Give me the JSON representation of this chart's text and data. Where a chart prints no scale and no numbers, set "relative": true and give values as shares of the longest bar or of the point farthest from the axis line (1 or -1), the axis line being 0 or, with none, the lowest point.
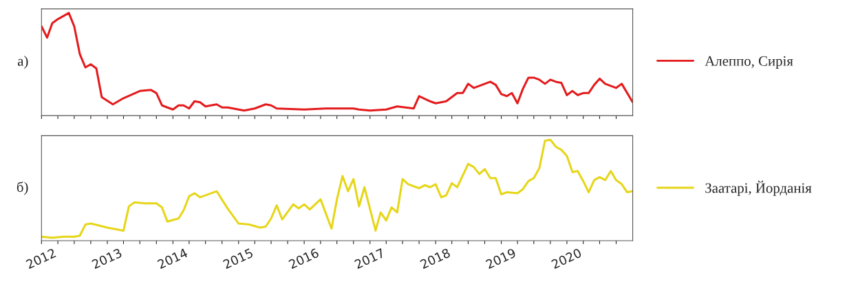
{
  "chart_data": [
    {
      "type": "line",
      "relative": true,
      "legend": "right",
      "grid": false,
      "tick_labels": false,
      "annotations": [
        "а)"
      ],
      "xlim": [
        "2012-01",
        "2021-01"
      ],
      "xticks": [
        {
          "value": "2012-01",
          "label": null
        },
        {
          "value": "2012-04",
          "label": null
        },
        {
          "value": "2012-07",
          "label": null
        },
        {
          "value": "2012-10",
          "label": null
        },
        {
          "value": "2013-01",
          "label": null
        },
        {
          "value": "2013-04",
          "label": null
        },
        {
          "value": "2013-07",
          "label": null
        },
        {
          "value": "2013-10",
          "label": null
        },
        {
          "value": "2014-01",
          "label": null
        },
        {
          "value": "2014-04",
          "label": null
        },
        {
          "value": "2014-07",
          "label": null
        },
        {
          "value": "2014-10",
          "label": null
        },
        {
          "value": "2015-01",
          "label": null
        },
        {
          "value": "2015-04",
          "label": null
        },
        {
          "value": "2015-07",
          "label": null
        },
        {
          "value": "2015-10",
          "label": null
        },
        {
          "value": "2016-01",
          "label": null
        },
        {
          "value": "2016-04",
          "label": null
        },
        {
          "value": "2016-07",
          "label": null
        },
        {
          "value": "2016-10",
          "label": null
        },
        {
          "value": "2017-01",
          "label": null
        },
        {
          "value": "2017-04",
          "label": null
        },
        {
          "value": "2017-07",
          "label": null
        },
        {
          "value": "2017-10",
          "label": null
        },
        {
          "value": "2018-01",
          "label": null
        },
        {
          "value": "2018-04",
          "label": null
        },
        {
          "value": "2018-07",
          "label": null
        },
        {
          "value": "2018-10",
          "label": null
        },
        {
          "value": "2019-01",
          "label": null
        },
        {
          "value": "2019-04",
          "label": null
        },
        {
          "value": "2019-07",
          "label": null
        },
        {
          "value": "2019-10",
          "label": null
        },
        {
          "value": "2020-01",
          "label": null
        },
        {
          "value": "2020-04",
          "label": null
        },
        {
          "value": "2020-07",
          "label": null
        },
        {
          "value": "2020-10",
          "label": null
        }
      ],
      "x": [
        "2012-01",
        "2012-02",
        "2012-03",
        "2012-04",
        "2012-06",
        "2012-07",
        "2012-08",
        "2012-09",
        "2012-10",
        "2012-11",
        "2012-12",
        "2013-02",
        "2013-04",
        "2013-07",
        "2013-09",
        "2013-10",
        "2013-11",
        "2013-12",
        "2014-01",
        "2014-02",
        "2014-03",
        "2014-04",
        "2014-05",
        "2014-06",
        "2014-07",
        "2014-09",
        "2014-10",
        "2014-11",
        "2015-02",
        "2015-04",
        "2015-06",
        "2015-07",
        "2015-08",
        "2016-01",
        "2016-05",
        "2016-06",
        "2016-08",
        "2016-10",
        "2016-11",
        "2017-01",
        "2017-04",
        "2017-06",
        "2017-09",
        "2017-10",
        "2017-12",
        "2018-01",
        "2018-03",
        "2018-05",
        "2018-06",
        "2018-07",
        "2018-08",
        "2018-09",
        "2018-11",
        "2018-12",
        "2019-01",
        "2019-02",
        "2019-03",
        "2019-04",
        "2019-05",
        "2019-06",
        "2019-07",
        "2019-08",
        "2019-09",
        "2019-10",
        "2019-11",
        "2019-12",
        "2020-01",
        "2020-02",
        "2020-03",
        "2020-04",
        "2020-05",
        "2020-06",
        "2020-07",
        "2020-08",
        "2020-10",
        "2020-11",
        "2021-01"
      ],
      "series": [
        {
          "name": "Алеппо, Сирія",
          "color": "#e41a1c",
          "values": [
            0.87,
            0.76,
            0.9,
            0.94,
            1.0,
            0.87,
            0.6,
            0.47,
            0.5,
            0.46,
            0.18,
            0.11,
            0.17,
            0.24,
            0.25,
            0.22,
            0.1,
            0.08,
            0.06,
            0.1,
            0.1,
            0.07,
            0.14,
            0.13,
            0.09,
            0.11,
            0.08,
            0.08,
            0.05,
            0.07,
            0.11,
            0.1,
            0.07,
            0.06,
            0.07,
            0.07,
            0.07,
            0.07,
            0.06,
            0.05,
            0.06,
            0.09,
            0.07,
            0.19,
            0.14,
            0.12,
            0.14,
            0.22,
            0.22,
            0.31,
            0.27,
            0.29,
            0.33,
            0.3,
            0.21,
            0.19,
            0.22,
            0.12,
            0.26,
            0.37,
            0.37,
            0.35,
            0.31,
            0.35,
            0.33,
            0.32,
            0.2,
            0.24,
            0.2,
            0.22,
            0.22,
            0.3,
            0.36,
            0.31,
            0.27,
            0.31,
            0.13
          ]
        }
      ]
    },
    {
      "type": "line",
      "relative": true,
      "legend": "right",
      "grid": false,
      "tick_labels": "x",
      "annotations": [
        "б)"
      ],
      "xlim": [
        "2012-01",
        "2021-01"
      ],
      "xticks": [
        {
          "value": "2012-01",
          "label": "2012"
        },
        {
          "value": "2012-04",
          "label": null
        },
        {
          "value": "2012-07",
          "label": null
        },
        {
          "value": "2012-10",
          "label": null
        },
        {
          "value": "2013-01",
          "label": "2013"
        },
        {
          "value": "2013-04",
          "label": null
        },
        {
          "value": "2013-07",
          "label": null
        },
        {
          "value": "2013-10",
          "label": null
        },
        {
          "value": "2014-01",
          "label": "2014"
        },
        {
          "value": "2014-04",
          "label": null
        },
        {
          "value": "2014-07",
          "label": null
        },
        {
          "value": "2014-10",
          "label": null
        },
        {
          "value": "2015-01",
          "label": "2015"
        },
        {
          "value": "2015-04",
          "label": null
        },
        {
          "value": "2015-07",
          "label": null
        },
        {
          "value": "2015-10",
          "label": null
        },
        {
          "value": "2016-01",
          "label": "2016"
        },
        {
          "value": "2016-04",
          "label": null
        },
        {
          "value": "2016-07",
          "label": null
        },
        {
          "value": "2016-10",
          "label": null
        },
        {
          "value": "2017-01",
          "label": "2017"
        },
        {
          "value": "2017-04",
          "label": null
        },
        {
          "value": "2017-07",
          "label": null
        },
        {
          "value": "2017-10",
          "label": null
        },
        {
          "value": "2018-01",
          "label": "2018"
        },
        {
          "value": "2018-04",
          "label": null
        },
        {
          "value": "2018-07",
          "label": null
        },
        {
          "value": "2018-10",
          "label": null
        },
        {
          "value": "2019-01",
          "label": "2019"
        },
        {
          "value": "2019-04",
          "label": null
        },
        {
          "value": "2019-07",
          "label": null
        },
        {
          "value": "2019-10",
          "label": null
        },
        {
          "value": "2020-01",
          "label": "2020"
        },
        {
          "value": "2020-04",
          "label": null
        },
        {
          "value": "2020-07",
          "label": null
        },
        {
          "value": "2020-10",
          "label": null
        }
      ],
      "x": [
        "2012-01",
        "2012-03",
        "2012-05",
        "2012-07",
        "2012-08",
        "2012-09",
        "2012-10",
        "2013-01",
        "2013-04",
        "2013-05",
        "2013-06",
        "2013-08",
        "2013-10",
        "2013-11",
        "2013-12",
        "2014-02",
        "2014-03",
        "2014-04",
        "2014-05",
        "2014-06",
        "2014-09",
        "2014-11",
        "2015-01",
        "2015-03",
        "2015-05",
        "2015-06",
        "2015-07",
        "2015-08",
        "2015-09",
        "2015-11",
        "2015-12",
        "2016-01",
        "2016-02",
        "2016-04",
        "2016-06",
        "2016-07",
        "2016-08",
        "2016-09",
        "2016-10",
        "2016-11",
        "2016-12",
        "2017-02",
        "2017-03",
        "2017-04",
        "2017-05",
        "2017-06",
        "2017-07",
        "2017-08",
        "2017-10",
        "2017-11",
        "2017-12",
        "2018-01",
        "2018-02",
        "2018-03",
        "2018-04",
        "2018-05",
        "2018-07",
        "2018-08",
        "2018-09",
        "2018-10",
        "2018-11",
        "2018-12",
        "2019-01",
        "2019-02",
        "2019-04",
        "2019-05",
        "2019-06",
        "2019-07",
        "2019-08",
        "2019-09",
        "2019-10",
        "2019-11",
        "2019-12",
        "2020-01",
        "2020-02",
        "2020-03",
        "2020-04",
        "2020-05",
        "2020-06",
        "2020-07",
        "2020-08",
        "2020-09",
        "2020-10",
        "2020-11",
        "2020-12",
        "2021-01"
      ],
      "series": [
        {
          "name": "Заатарі, Йорданія",
          "color": "#e6d619",
          "values": [
            0.04,
            0.03,
            0.04,
            0.04,
            0.05,
            0.16,
            0.17,
            0.13,
            0.1,
            0.34,
            0.38,
            0.37,
            0.37,
            0.33,
            0.19,
            0.22,
            0.3,
            0.44,
            0.47,
            0.43,
            0.49,
            0.32,
            0.17,
            0.16,
            0.13,
            0.14,
            0.22,
            0.35,
            0.21,
            0.36,
            0.32,
            0.36,
            0.31,
            0.41,
            0.12,
            0.41,
            0.64,
            0.49,
            0.61,
            0.34,
            0.53,
            0.1,
            0.28,
            0.2,
            0.33,
            0.28,
            0.61,
            0.56,
            0.52,
            0.55,
            0.53,
            0.56,
            0.43,
            0.45,
            0.57,
            0.53,
            0.76,
            0.73,
            0.66,
            0.71,
            0.62,
            0.62,
            0.46,
            0.48,
            0.47,
            0.51,
            0.59,
            0.62,
            0.72,
            0.99,
            1.0,
            0.93,
            0.9,
            0.84,
            0.68,
            0.69,
            0.59,
            0.48,
            0.6,
            0.63,
            0.6,
            0.69,
            0.6,
            0.56,
            0.48,
            0.49
          ]
        }
      ]
    }
  ]
}
